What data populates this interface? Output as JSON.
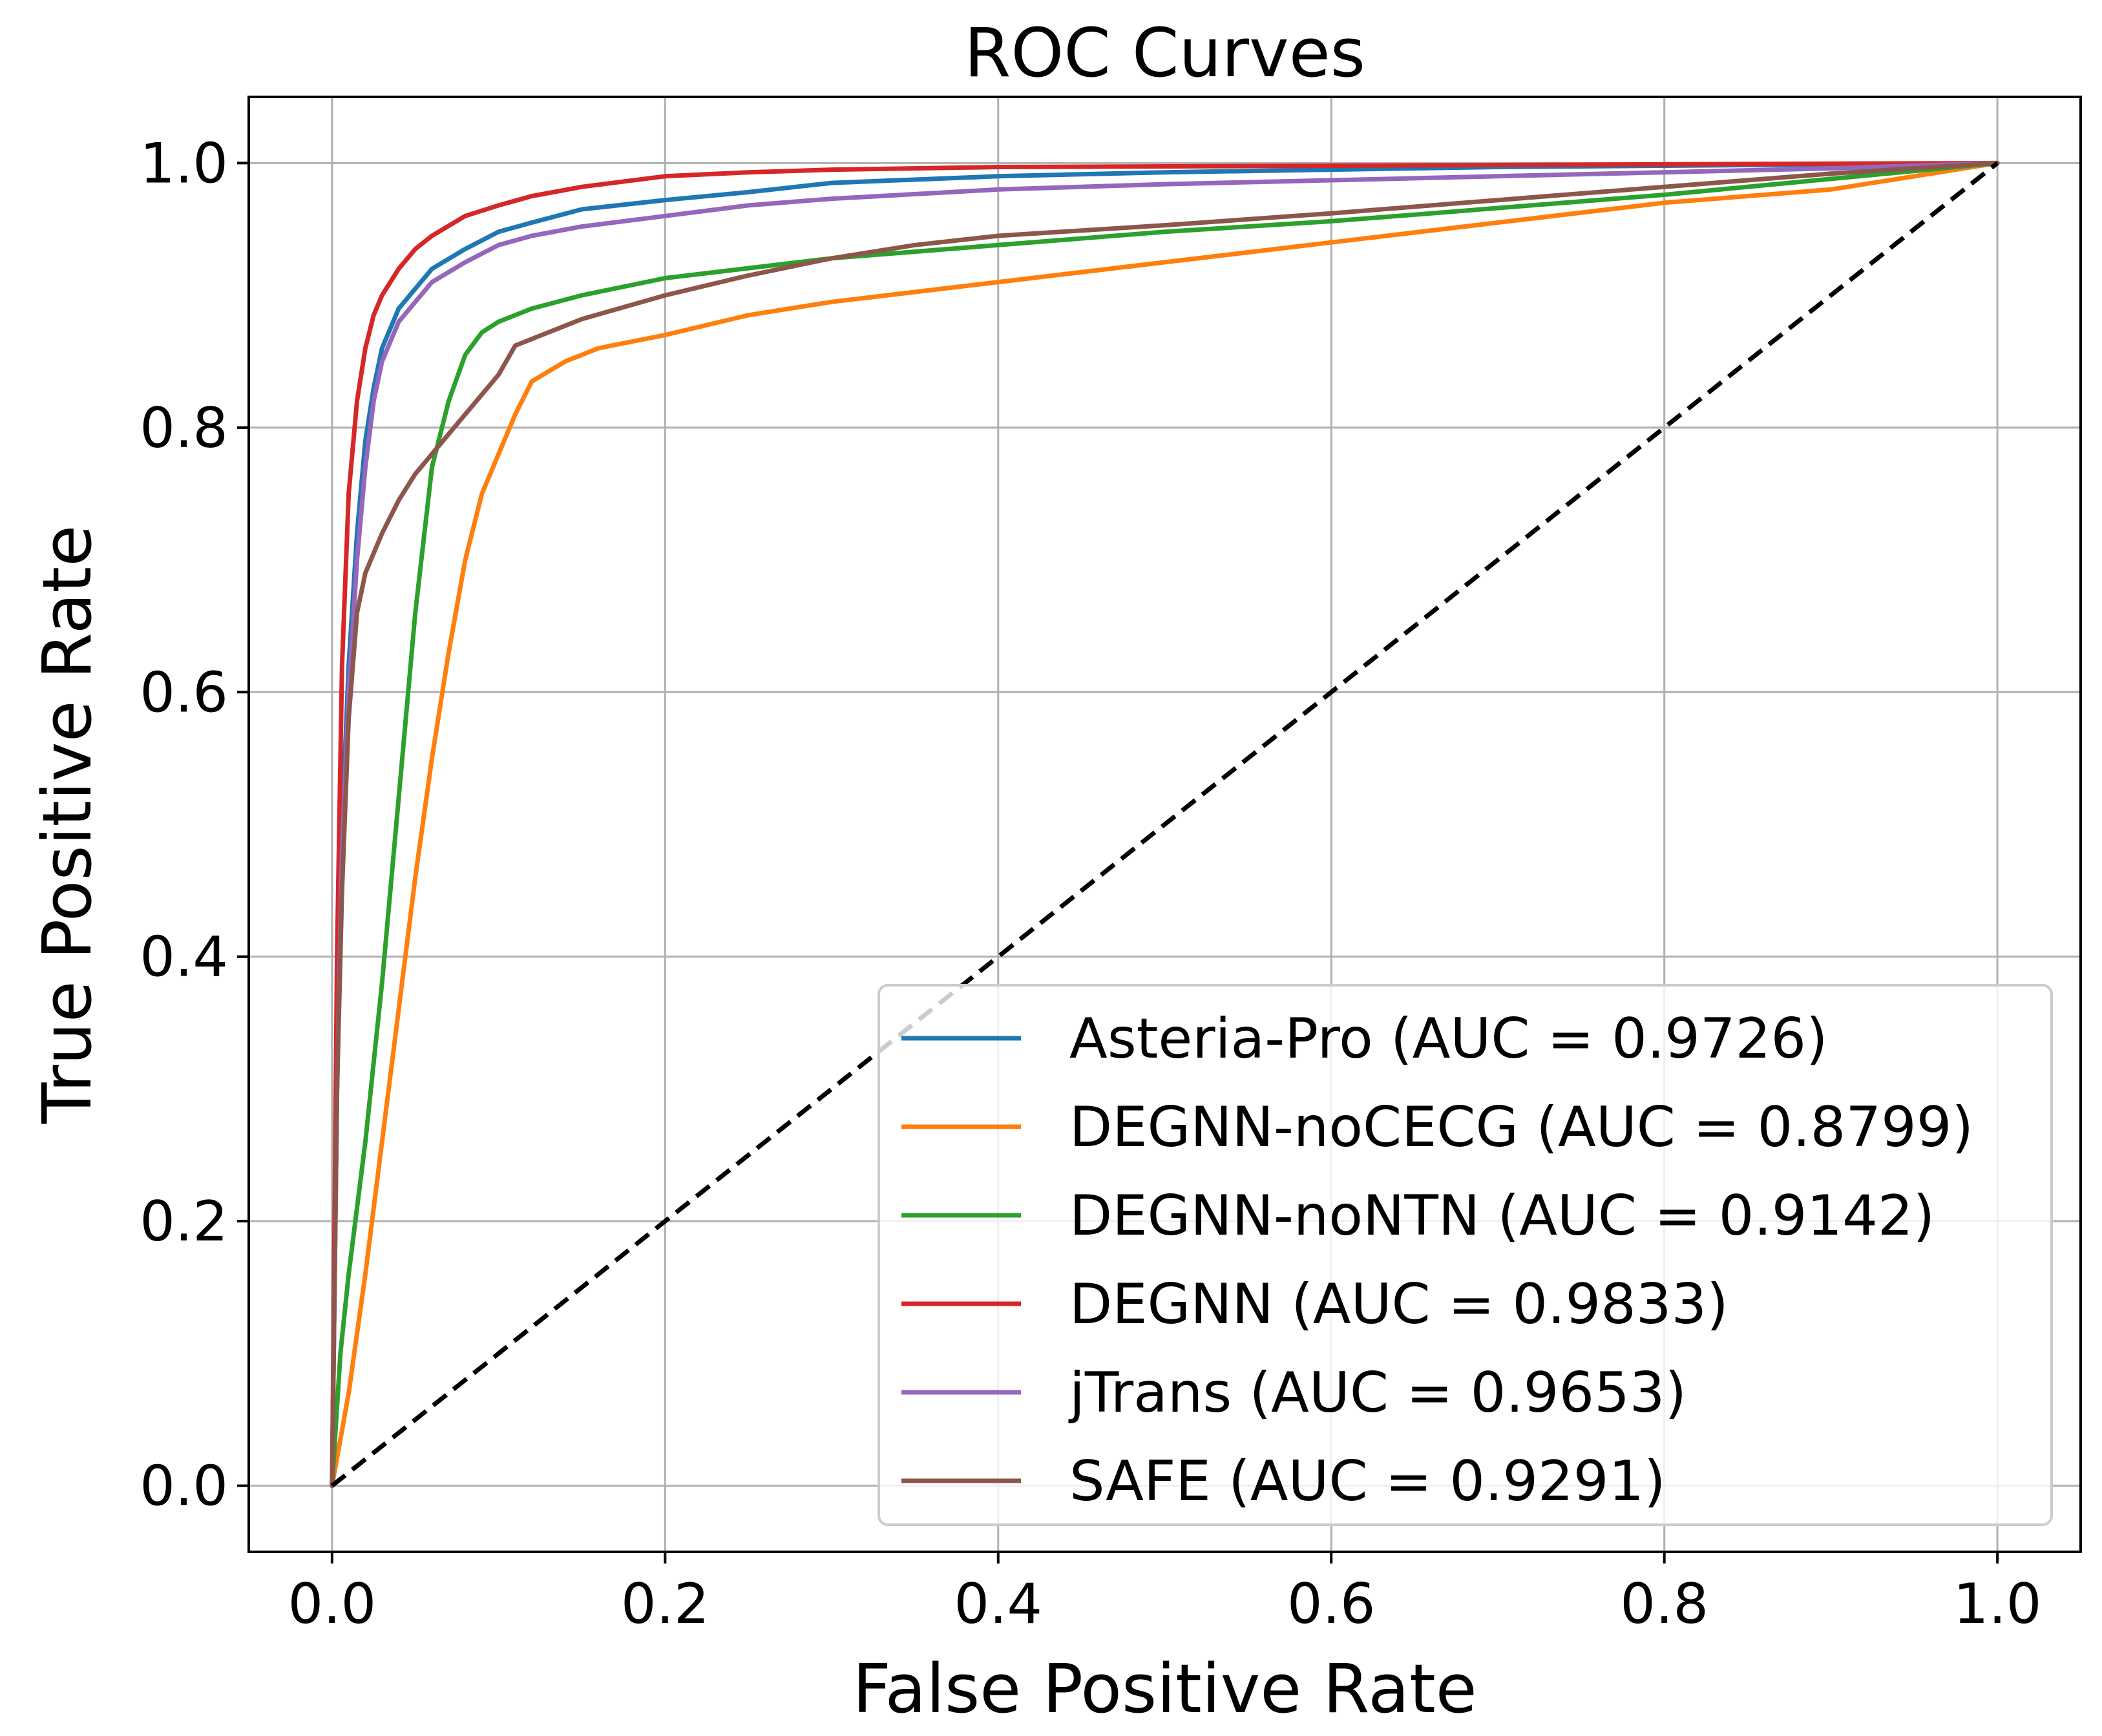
{
  "chart_data": {
    "type": "line",
    "title": "ROC Curves",
    "xlabel": "False Positive Rate",
    "ylabel": "True Positive Rate",
    "xlim": [
      -0.05,
      1.05
    ],
    "ylim": [
      -0.05,
      1.05
    ],
    "xticks": [
      0.0,
      0.2,
      0.4,
      0.6,
      0.8,
      1.0
    ],
    "yticks": [
      0.0,
      0.2,
      0.4,
      0.6,
      0.8,
      1.0
    ],
    "xtick_labels": [
      "0.0",
      "0.2",
      "0.4",
      "0.6",
      "0.8",
      "1.0"
    ],
    "ytick_labels": [
      "0.0",
      "0.2",
      "0.4",
      "0.6",
      "0.8",
      "1.0"
    ],
    "grid": true,
    "legend_position": "lower-right",
    "series": [
      {
        "name": "Asteria-Pro (AUC = 0.9726)",
        "color": "#1f77b4",
        "x": [
          0,
          0.003,
          0.006,
          0.01,
          0.015,
          0.02,
          0.025,
          0.03,
          0.04,
          0.05,
          0.06,
          0.08,
          0.1,
          0.12,
          0.15,
          0.2,
          0.25,
          0.3,
          0.4,
          0.5,
          0.6,
          0.7,
          0.8,
          0.9,
          1.0
        ],
        "y": [
          0,
          0.3,
          0.5,
          0.62,
          0.72,
          0.79,
          0.83,
          0.86,
          0.89,
          0.905,
          0.92,
          0.935,
          0.948,
          0.955,
          0.965,
          0.972,
          0.978,
          0.985,
          0.99,
          0.993,
          0.995,
          0.997,
          0.998,
          0.999,
          1.0
        ]
      },
      {
        "name": "DEGNN-noCECG (AUC = 0.8799)",
        "color": "#ff7f0e",
        "x": [
          0,
          0.01,
          0.02,
          0.03,
          0.04,
          0.05,
          0.06,
          0.07,
          0.08,
          0.09,
          0.1,
          0.11,
          0.12,
          0.14,
          0.16,
          0.2,
          0.25,
          0.3,
          0.4,
          0.5,
          0.6,
          0.7,
          0.8,
          0.9,
          1.0
        ],
        "y": [
          0,
          0.07,
          0.16,
          0.26,
          0.36,
          0.46,
          0.55,
          0.63,
          0.7,
          0.75,
          0.78,
          0.81,
          0.835,
          0.85,
          0.86,
          0.87,
          0.885,
          0.895,
          0.91,
          0.925,
          0.94,
          0.955,
          0.97,
          0.98,
          1.0
        ]
      },
      {
        "name": "DEGNN-noNTN (AUC = 0.9142)",
        "color": "#2ca02c",
        "x": [
          0,
          0.005,
          0.01,
          0.02,
          0.03,
          0.04,
          0.05,
          0.06,
          0.07,
          0.08,
          0.09,
          0.1,
          0.12,
          0.15,
          0.2,
          0.3,
          0.4,
          0.5,
          0.6,
          0.7,
          0.8,
          0.9,
          1.0
        ],
        "y": [
          0,
          0.1,
          0.16,
          0.26,
          0.38,
          0.52,
          0.66,
          0.77,
          0.82,
          0.855,
          0.872,
          0.88,
          0.89,
          0.9,
          0.913,
          0.928,
          0.938,
          0.948,
          0.956,
          0.966,
          0.976,
          0.988,
          1.0
        ]
      },
      {
        "name": "DEGNN (AUC = 0.9833)",
        "color": "#d62728",
        "x": [
          0,
          0.003,
          0.006,
          0.01,
          0.015,
          0.02,
          0.025,
          0.03,
          0.04,
          0.05,
          0.06,
          0.08,
          0.1,
          0.12,
          0.15,
          0.2,
          0.25,
          0.3,
          0.4,
          0.6,
          0.8,
          1.0
        ],
        "y": [
          0,
          0.4,
          0.62,
          0.75,
          0.82,
          0.86,
          0.885,
          0.9,
          0.92,
          0.935,
          0.945,
          0.96,
          0.968,
          0.975,
          0.982,
          0.99,
          0.993,
          0.995,
          0.997,
          0.998,
          0.999,
          1.0
        ]
      },
      {
        "name": "jTrans (AUC = 0.9653)",
        "color": "#9467bd",
        "x": [
          0,
          0.003,
          0.006,
          0.01,
          0.015,
          0.02,
          0.025,
          0.03,
          0.04,
          0.05,
          0.06,
          0.08,
          0.1,
          0.12,
          0.15,
          0.2,
          0.25,
          0.3,
          0.4,
          0.5,
          0.6,
          0.7,
          0.8,
          0.9,
          1.0
        ],
        "y": [
          0,
          0.3,
          0.48,
          0.6,
          0.7,
          0.77,
          0.82,
          0.85,
          0.88,
          0.895,
          0.91,
          0.925,
          0.938,
          0.945,
          0.952,
          0.96,
          0.968,
          0.973,
          0.98,
          0.984,
          0.987,
          0.99,
          0.993,
          0.996,
          1.0
        ]
      },
      {
        "name": "SAFE (AUC = 0.9291)",
        "color": "#8c564b",
        "x": [
          0,
          0.003,
          0.006,
          0.01,
          0.015,
          0.02,
          0.03,
          0.04,
          0.05,
          0.06,
          0.08,
          0.1,
          0.11,
          0.13,
          0.15,
          0.2,
          0.25,
          0.3,
          0.35,
          0.4,
          0.5,
          0.6,
          0.7,
          0.8,
          0.9,
          1.0
        ],
        "y": [
          0,
          0.3,
          0.45,
          0.58,
          0.66,
          0.69,
          0.72,
          0.745,
          0.765,
          0.78,
          0.81,
          0.84,
          0.862,
          0.872,
          0.882,
          0.9,
          0.915,
          0.928,
          0.938,
          0.945,
          0.953,
          0.962,
          0.972,
          0.982,
          0.992,
          1.0
        ]
      }
    ],
    "reference_line": {
      "name": "chance",
      "color": "#000000",
      "x": [
        0,
        1
      ],
      "y": [
        0,
        1
      ]
    }
  }
}
